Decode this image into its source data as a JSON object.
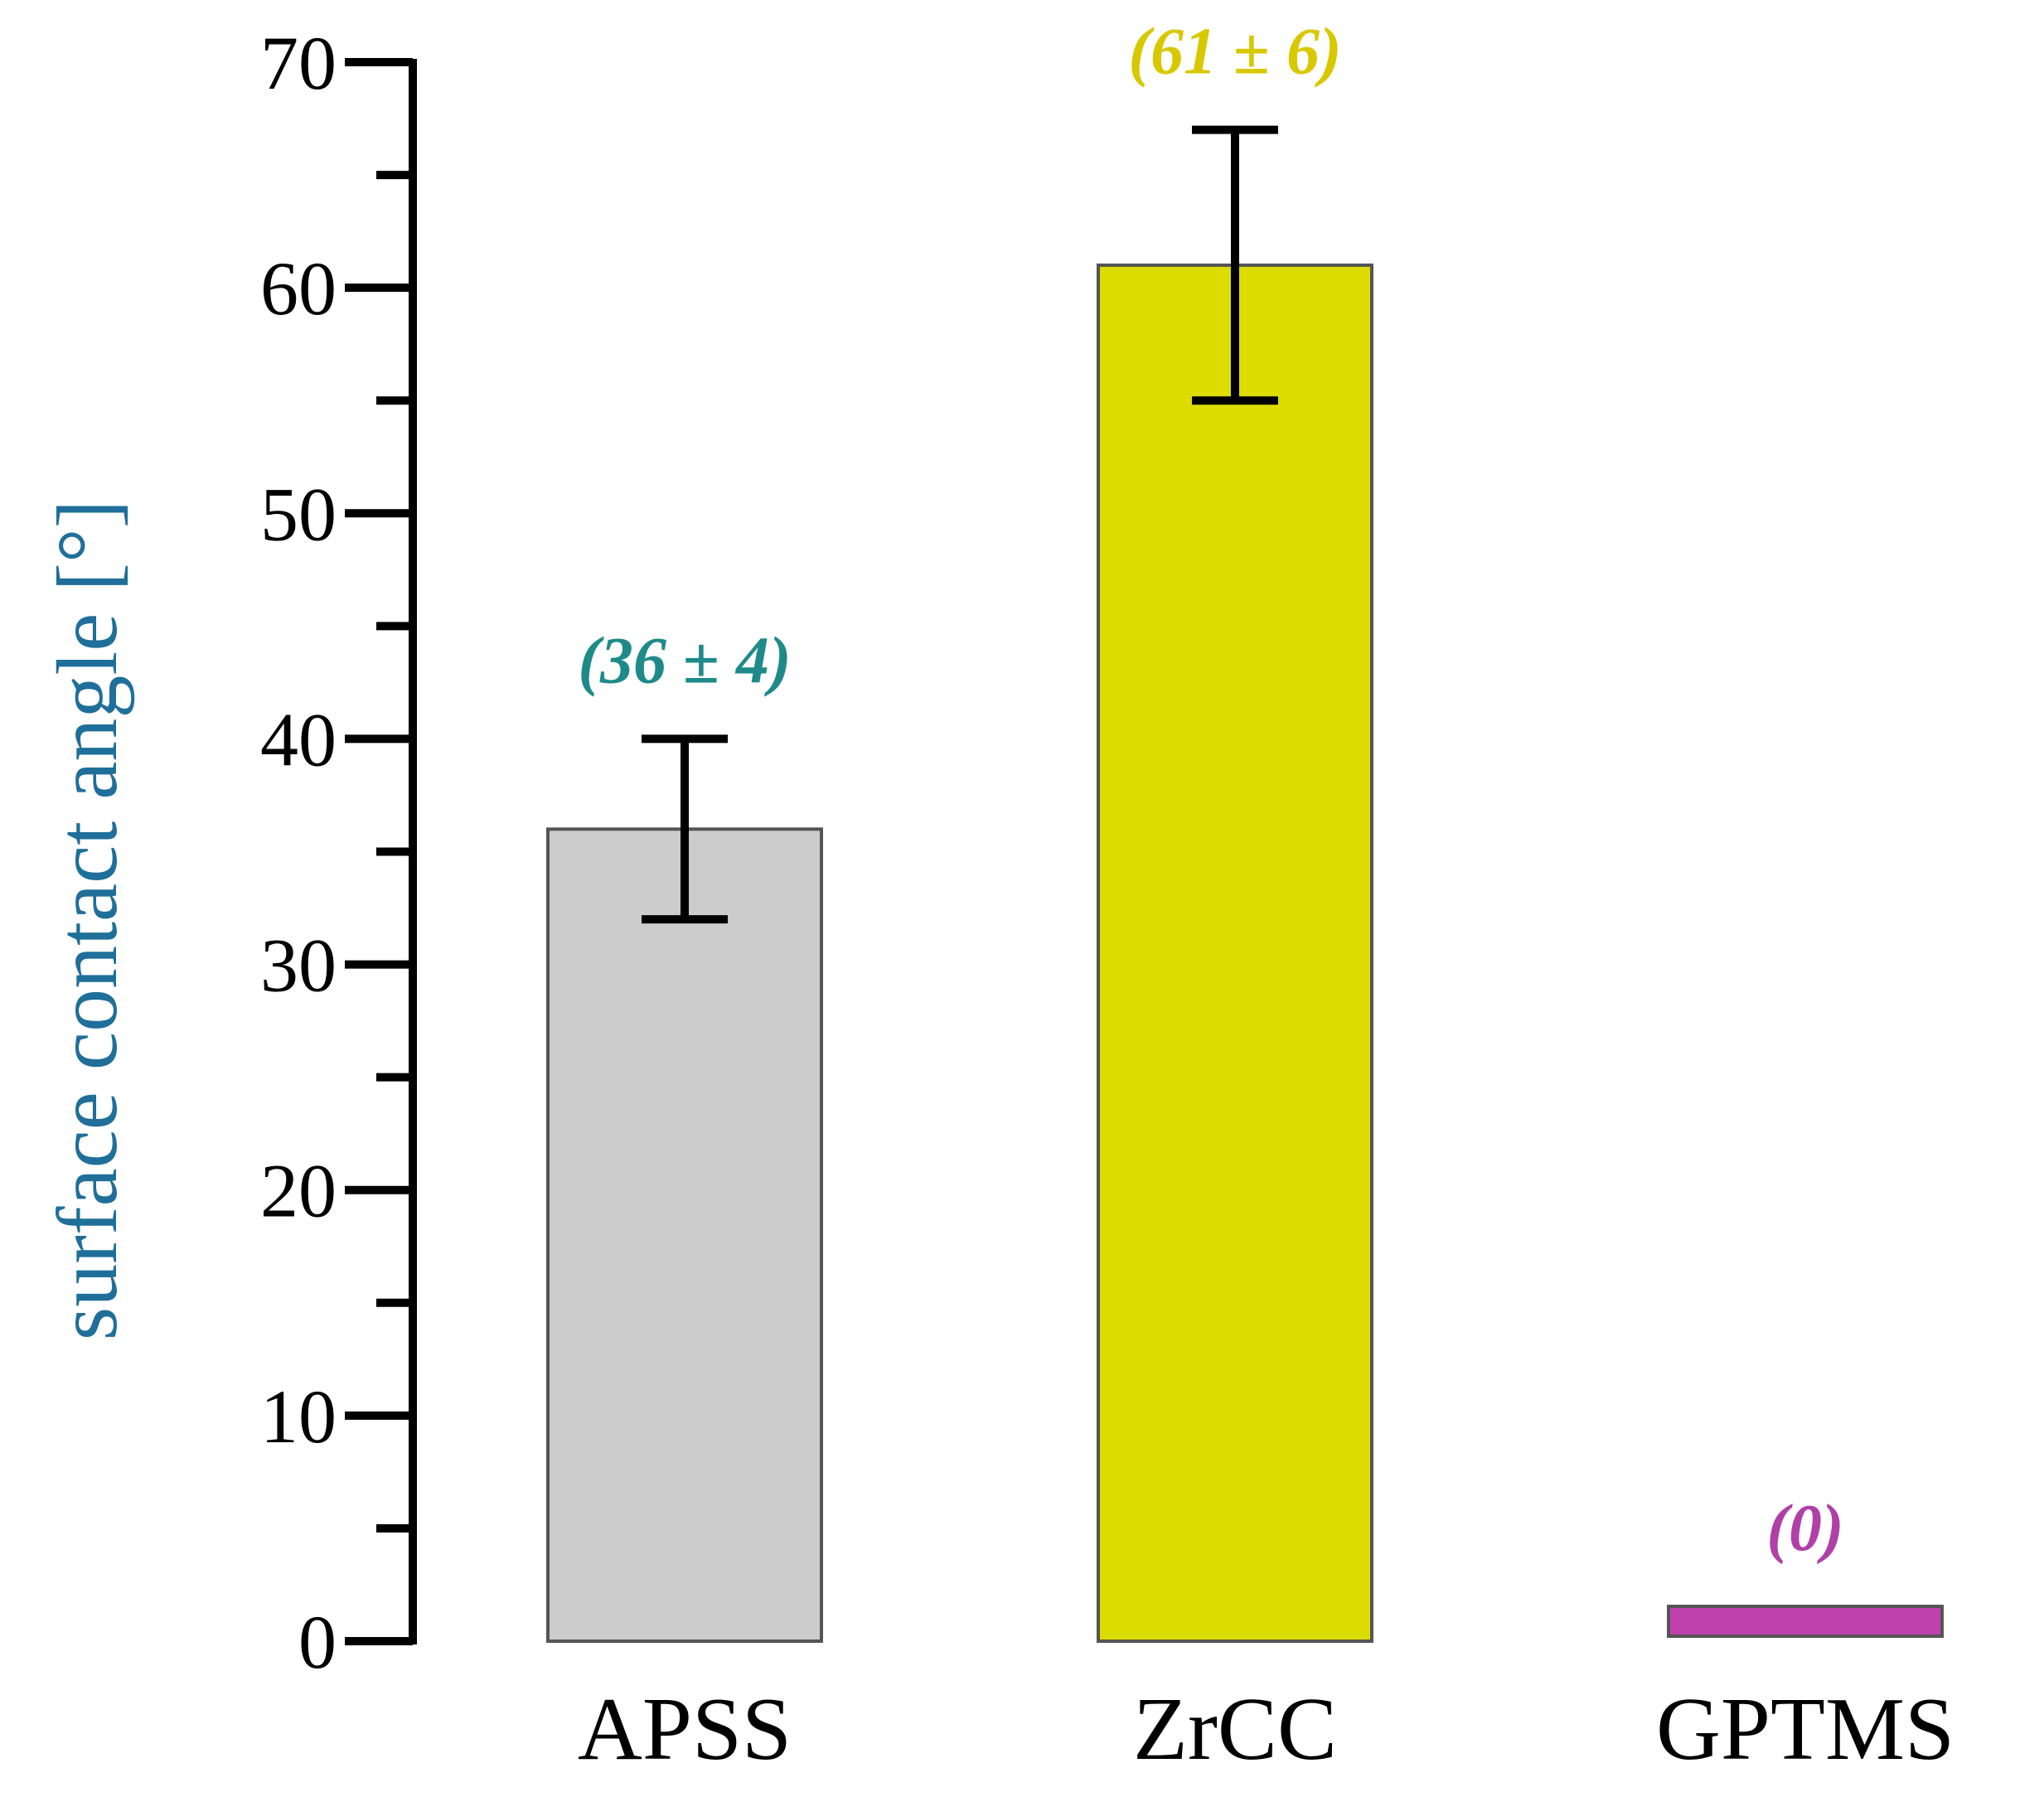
{
  "chart_data": {
    "type": "bar",
    "title": "",
    "xlabel": "",
    "ylabel": "surface contact angle [°]",
    "ylabel_color": "#1f6f9a",
    "ylim": [
      0,
      70
    ],
    "major_ticks": [
      0,
      10,
      20,
      30,
      40,
      50,
      60,
      70
    ],
    "minor_tick_step": 5,
    "grid": false,
    "categories": [
      "APSS",
      "ZrCC",
      "GPTMS"
    ],
    "values": [
      36,
      61,
      0
    ],
    "errors": [
      4,
      6,
      0
    ],
    "data_labels": [
      "(36 ± 4)",
      "(61 ± 6)",
      "(0)"
    ],
    "bar_colors": [
      "#cccccc",
      "#dcdc00",
      "#c040b0"
    ],
    "label_colors": [
      "#1f8a8a",
      "#d8c800",
      "#b040a8"
    ]
  }
}
